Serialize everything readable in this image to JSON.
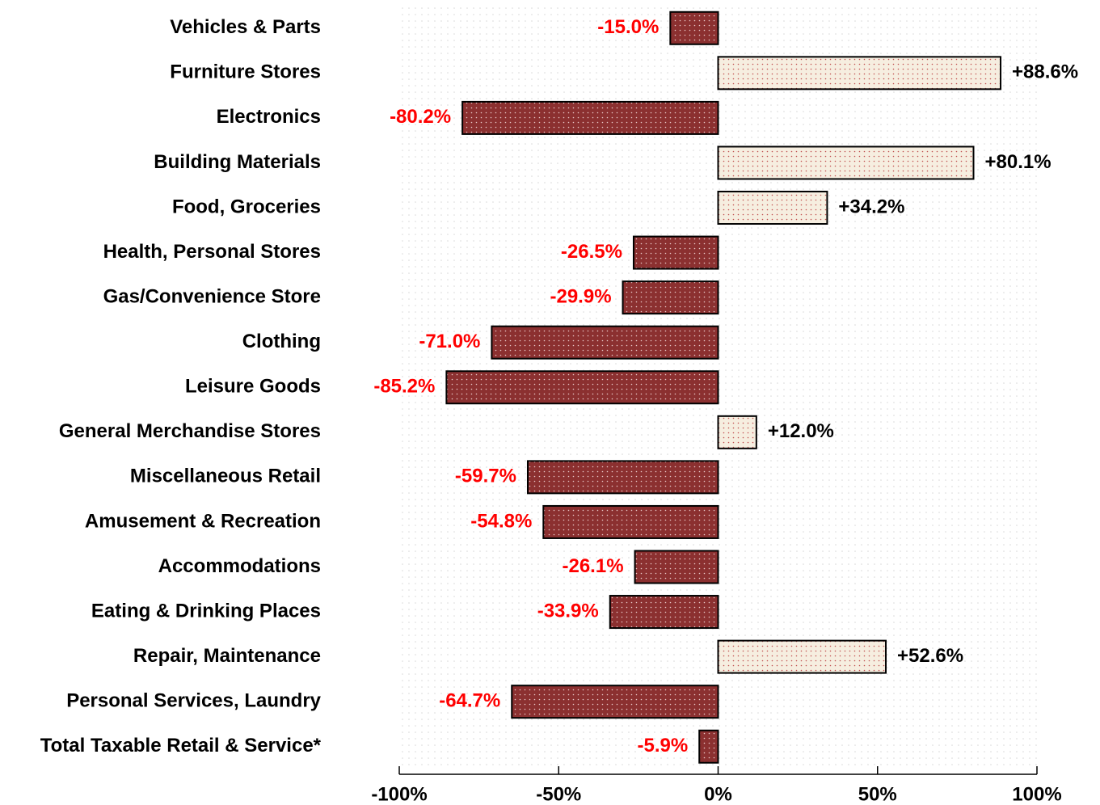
{
  "chart_data": {
    "type": "hbar",
    "categories": [
      "Vehicles & Parts",
      "Furniture Stores",
      "Electronics",
      "Building Materials",
      "Food, Groceries",
      "Health, Personal Stores",
      "Gas/Convenience Store",
      "Clothing",
      "Leisure Goods",
      "General Merchandise Stores",
      "Miscellaneous Retail",
      "Amusement & Recreation",
      "Accommodations",
      "Eating & Drinking Places",
      "Repair, Maintenance",
      "Personal Services, Laundry",
      "Total Taxable Retail & Service*"
    ],
    "values": [
      -15.0,
      88.6,
      -80.2,
      80.1,
      34.2,
      -26.5,
      -29.9,
      -71.0,
      -85.2,
      12.0,
      -59.7,
      -54.8,
      -26.1,
      -33.9,
      52.6,
      -64.7,
      -5.9
    ],
    "value_labels": [
      "-15.0%",
      "+88.6%",
      "-80.2%",
      "+80.1%",
      "+34.2%",
      "-26.5%",
      "-29.9%",
      "-71.0%",
      "-85.2%",
      "+12.0%",
      "-59.7%",
      "-54.8%",
      "-26.1%",
      "-33.9%",
      "+52.6%",
      "-64.7%",
      "-5.9%"
    ],
    "xlim": [
      -100,
      100
    ],
    "xticks": [
      {
        "value": -100,
        "label": "-100%"
      },
      {
        "value": -50,
        "label": "-50%"
      },
      {
        "value": 0,
        "label": "0%"
      },
      {
        "value": 50,
        "label": "50%"
      },
      {
        "value": 100,
        "label": "100%"
      }
    ],
    "negative_color": "#8b3030",
    "positive_color": "#f6eee0",
    "negative_label_color": "#ff0000",
    "positive_label_color": "#000000"
  }
}
